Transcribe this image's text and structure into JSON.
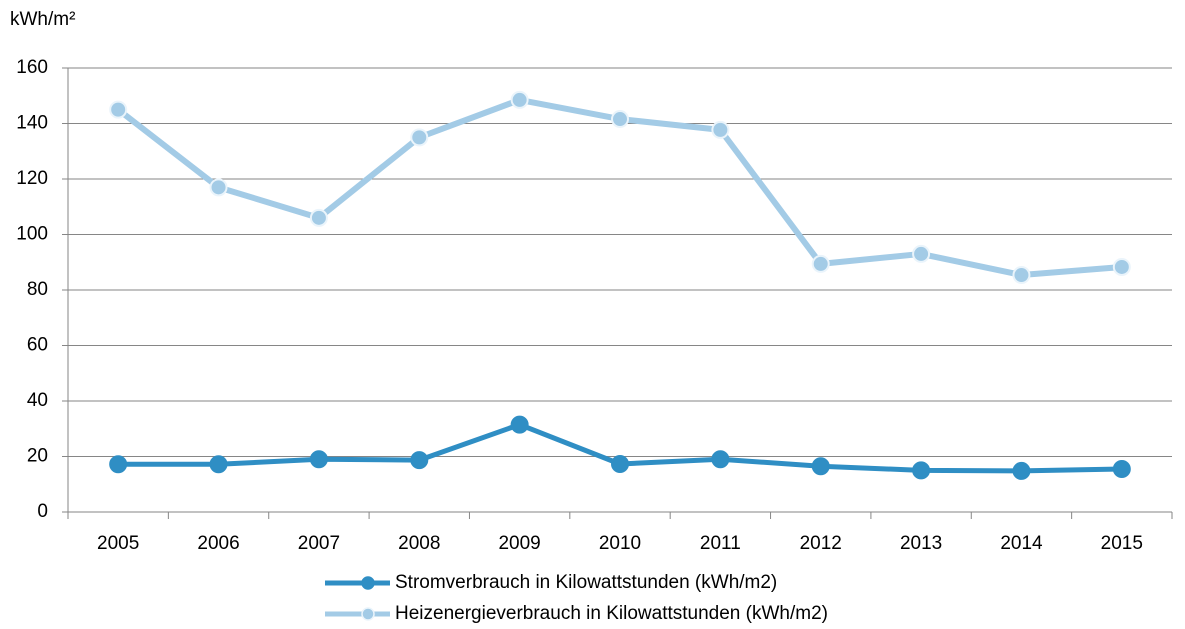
{
  "chart_data": {
    "type": "line",
    "y_axis_label": "kWh/m²",
    "categories": [
      "2005",
      "2006",
      "2007",
      "2008",
      "2009",
      "2010",
      "2011",
      "2012",
      "2013",
      "2014",
      "2015"
    ],
    "series": [
      {
        "name": "Stromverbrauch in Kilowattstunden (kWh/m2)",
        "color": "#2f8ec4",
        "values": [
          17.2,
          17.2,
          19,
          18.7,
          31.5,
          17.3,
          19,
          16.5,
          15,
          14.8,
          15.5
        ]
      },
      {
        "name": "Heizenergieverbrauch in Kilowattstunden (kWh/m2)",
        "color": "#a3cbe6",
        "values": [
          145,
          117,
          106,
          135,
          148.5,
          141.6,
          137.7,
          89.4,
          93,
          85.4,
          88.3
        ]
      }
    ],
    "ylim": [
      0,
      160
    ],
    "yticks": [
      0,
      20,
      40,
      60,
      80,
      100,
      120,
      140,
      160
    ],
    "grid": true
  }
}
